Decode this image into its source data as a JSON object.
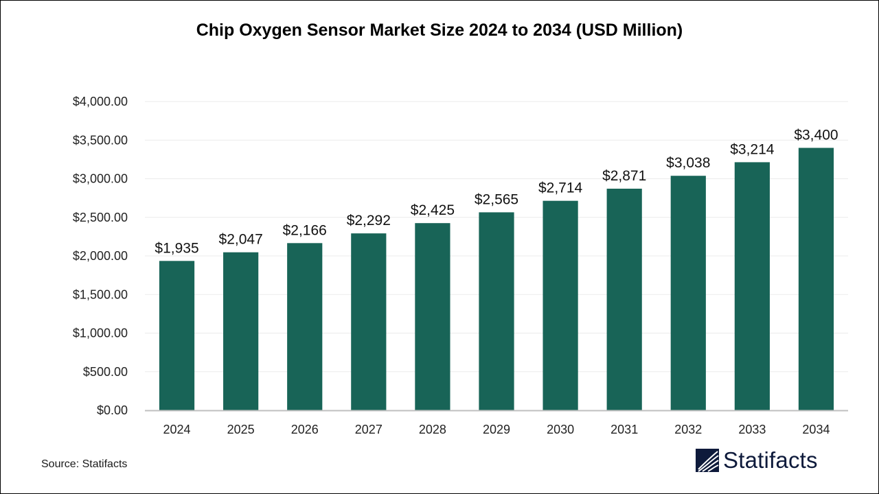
{
  "chart_data": {
    "type": "bar",
    "title": "Chip Oxygen Sensor Market Size 2024 to 2034 (USD Million)",
    "xlabel": "",
    "ylabel": "",
    "categories": [
      "2024",
      "2025",
      "2026",
      "2027",
      "2028",
      "2029",
      "2030",
      "2031",
      "2032",
      "2033",
      "2034"
    ],
    "values": [
      1935,
      2047,
      2166,
      2292,
      2425,
      2565,
      2714,
      2871,
      3038,
      3214,
      3400
    ],
    "data_labels": [
      "$1,935",
      "$2,047",
      "$2,166",
      "$2,292",
      "$2,425",
      "$2,565",
      "$2,714",
      "$2,871",
      "$3,038",
      "$3,214",
      "$3,400"
    ],
    "ylim": [
      0,
      4000
    ],
    "yticks": [
      0,
      500,
      1000,
      1500,
      2000,
      2500,
      3000,
      3500,
      4000
    ],
    "ytick_labels": [
      "$0.00",
      "$500.00",
      "$1,000.00",
      "$1,500.00",
      "$2,000.00",
      "$2,500.00",
      "$3,000.00",
      "$3,500.00",
      "$4,000.00"
    ],
    "grid": true,
    "legend": "none",
    "bar_color": "#186457"
  },
  "footer": {
    "source": "Source: Statifacts",
    "logo_text": "Statifacts",
    "logo_color": "#0e1a3b"
  }
}
